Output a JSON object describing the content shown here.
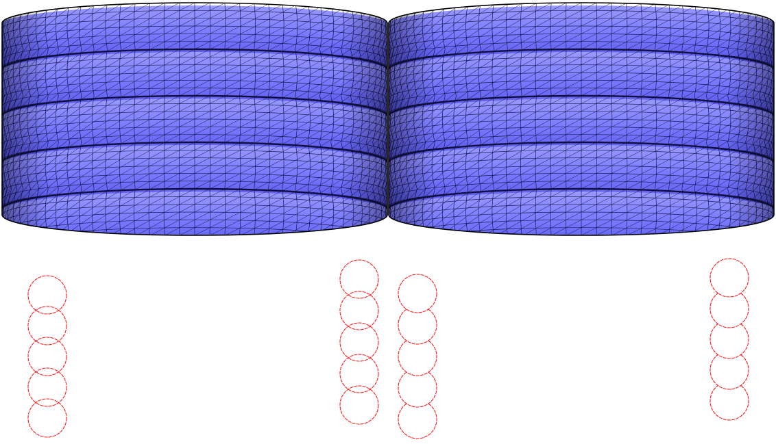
{
  "colors": {
    "background": "#ffffff",
    "mesh_fill": "#7b7bff",
    "mesh_fill_dark": "#3a3ad8",
    "mesh_fill_light": "#9a9aff",
    "mesh_wire": "#0b0b3a",
    "profile_curve": "#ff1a1a"
  },
  "meshes": [
    {
      "name": "left-mesh",
      "rings": 5
    },
    {
      "name": "right-mesh",
      "rings": 5
    }
  ],
  "profiles": [
    {
      "name": "left-mesh-left-profile",
      "circles": 5,
      "style": "overlapping"
    },
    {
      "name": "left-mesh-right-profile",
      "circles": 5,
      "style": "overlapping"
    },
    {
      "name": "right-mesh-left-profile",
      "circles": 5,
      "style": "scalloped"
    },
    {
      "name": "right-mesh-right-profile",
      "circles": 5,
      "style": "scalloped"
    }
  ]
}
